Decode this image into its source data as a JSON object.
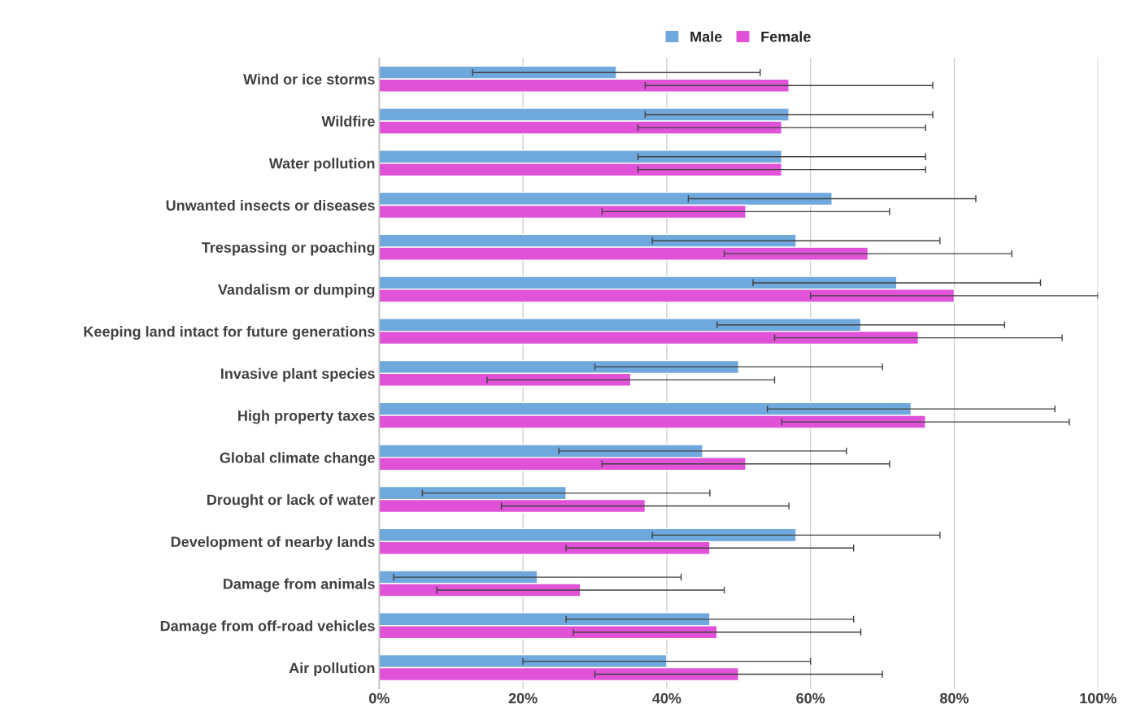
{
  "chart_data": {
    "type": "bar",
    "orientation": "horizontal",
    "categories": [
      "Wind or ice storms",
      "Wildfire",
      "Water pollution",
      "Unwanted insects or diseases",
      "Trespassing or poaching",
      "Vandalism or dumping",
      "Keeping land intact for future generations",
      "Invasive plant species",
      "High property taxes",
      "Global climate change",
      "Drought or lack of water",
      "Development of nearby lands",
      "Damage from animals",
      "Damage from off-road vehicles",
      "Air pollution"
    ],
    "series": [
      {
        "name": "Male",
        "color": "#6fa8dc",
        "values": [
          33,
          57,
          56,
          63,
          58,
          72,
          67,
          50,
          74,
          45,
          26,
          58,
          22,
          46,
          40
        ],
        "errors": [
          20,
          20,
          20,
          20,
          20,
          20,
          20,
          20,
          20,
          20,
          20,
          20,
          20,
          20,
          20
        ]
      },
      {
        "name": "Female",
        "color": "#e052d8",
        "values": [
          57,
          56,
          56,
          51,
          68,
          80,
          75,
          35,
          76,
          51,
          37,
          46,
          28,
          47,
          50
        ],
        "errors": [
          20,
          20,
          20,
          20,
          20,
          20,
          20,
          20,
          20,
          20,
          20,
          20,
          20,
          20,
          20
        ]
      }
    ],
    "xlim": [
      0,
      100
    ],
    "xticks": [
      {
        "value": 0,
        "label": "0%"
      },
      {
        "value": 20,
        "label": "20%"
      },
      {
        "value": 40,
        "label": "40%"
      },
      {
        "value": 60,
        "label": "60%"
      },
      {
        "value": 80,
        "label": "80%"
      },
      {
        "value": 100,
        "label": "100%"
      }
    ],
    "grid": "x",
    "legend": "top"
  }
}
